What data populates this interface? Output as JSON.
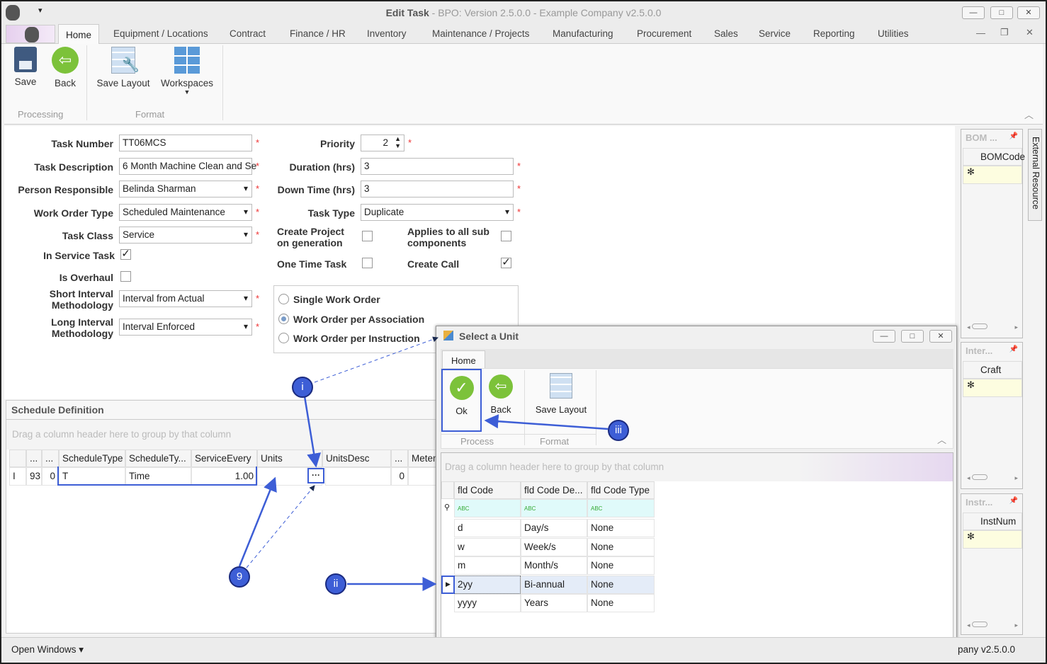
{
  "window": {
    "title_bold": "Edit Task",
    "title_rest": " - BPO: Version 2.5.0.0 - Example Company v2.5.0.0",
    "min": "—",
    "max": "□",
    "close": "✕"
  },
  "tabs": [
    "Home",
    "Equipment / Locations",
    "Contract",
    "Finance / HR",
    "Inventory",
    "Maintenance / Projects",
    "Manufacturing",
    "Procurement",
    "Sales",
    "Service",
    "Reporting",
    "Utilities"
  ],
  "ribbon": {
    "save": "Save",
    "back": "Back",
    "save_layout": "Save Layout",
    "workspaces": "Workspaces",
    "group_processing": "Processing",
    "group_format": "Format"
  },
  "form": {
    "task_number": {
      "label": "Task Number",
      "value": "TT06MCS"
    },
    "task_description": {
      "label": "Task Description",
      "value": "6 Month Machine Clean and Se"
    },
    "person_responsible": {
      "label": "Person Responsible",
      "value": "Belinda Sharman"
    },
    "work_order_type": {
      "label": "Work Order Type",
      "value": "Scheduled Maintenance"
    },
    "task_class": {
      "label": "Task Class",
      "value": "Service"
    },
    "in_service_task": {
      "label": "In Service Task",
      "checked": true
    },
    "is_overhaul": {
      "label": "Is Overhaul",
      "checked": false
    },
    "short_interval": {
      "label1": "Short Interval",
      "label2": "Methodology",
      "value": "Interval from Actual"
    },
    "long_interval": {
      "label1": "Long Interval",
      "label2": "Methodology",
      "value": "Interval Enforced"
    },
    "priority": {
      "label": "Priority",
      "value": "2"
    },
    "duration": {
      "label": "Duration (hrs)",
      "value": "3"
    },
    "down_time": {
      "label": "Down Time (hrs)",
      "value": "3"
    },
    "task_type": {
      "label": "Task Type",
      "value": "Duplicate"
    },
    "create_project": {
      "label1": "Create Project",
      "label2": "on generation",
      "checked": false
    },
    "applies_to_all": {
      "label1": "Applies to all sub",
      "label2": "components",
      "checked": false
    },
    "one_time_task": {
      "label": "One Time Task",
      "checked": false
    },
    "create_call": {
      "label": "Create Call",
      "checked": true
    },
    "wo_options": [
      {
        "label": "Single Work Order",
        "selected": false
      },
      {
        "label": "Work Order per Association",
        "selected": true
      },
      {
        "label": "Work Order per Instruction",
        "selected": false
      }
    ],
    "required": "*"
  },
  "schedule": {
    "title": "Schedule Definition",
    "group_hint": "Drag a column header here to group by that column",
    "columns": [
      "...",
      "...",
      "ScheduleType",
      "ScheduleTy...",
      "ServiceEvery",
      "Units",
      "UnitsDesc",
      "...",
      "Meter"
    ],
    "row": {
      "indicator": "I",
      "c1": "93",
      "c2": "0",
      "schedule_type": "T",
      "schedule_type_desc": "Time",
      "service_every": "1.00",
      "units": "",
      "ellipsis": "···",
      "units_desc": "",
      "c8": "0",
      "meter": ""
    }
  },
  "dialog": {
    "title": "Select a Unit",
    "tab": "Home",
    "ok": "Ok",
    "back": "Back",
    "save_layout": "Save Layout",
    "group_process": "Process",
    "group_format": "Format",
    "group_hint": "Drag a column header here to group by that column",
    "columns": [
      "fld Code",
      "fld Code De...",
      "fld Code Type"
    ],
    "filter_icon": "ABC",
    "rows": [
      {
        "code": "d",
        "desc": "Day/s",
        "type": "None"
      },
      {
        "code": "w",
        "desc": "Week/s",
        "type": "None"
      },
      {
        "code": "m",
        "desc": "Month/s",
        "type": "None"
      },
      {
        "code": "2yy",
        "desc": "Bi-annual",
        "type": "None",
        "selected": true
      },
      {
        "code": "yyyy",
        "desc": "Years",
        "type": "None"
      }
    ]
  },
  "side_panels": [
    {
      "title": "BOM ...",
      "column": "BOMCode"
    },
    {
      "title": "Inter...",
      "column": "Craft"
    },
    {
      "title": "Instr...",
      "column": "InstNum"
    }
  ],
  "external_resource": "External Resource",
  "annotations": {
    "i": "i",
    "ii": "ii",
    "iii": "iii",
    "nine": "9"
  },
  "status": {
    "open_windows": "Open Windows ▾",
    "company": "pany v2.5.0.0"
  },
  "colors": {
    "accent": "#3d5ed6",
    "new_row": "#fdfde0",
    "filter_row": "#e0fafa",
    "selected_row": "#e4ecf8"
  }
}
